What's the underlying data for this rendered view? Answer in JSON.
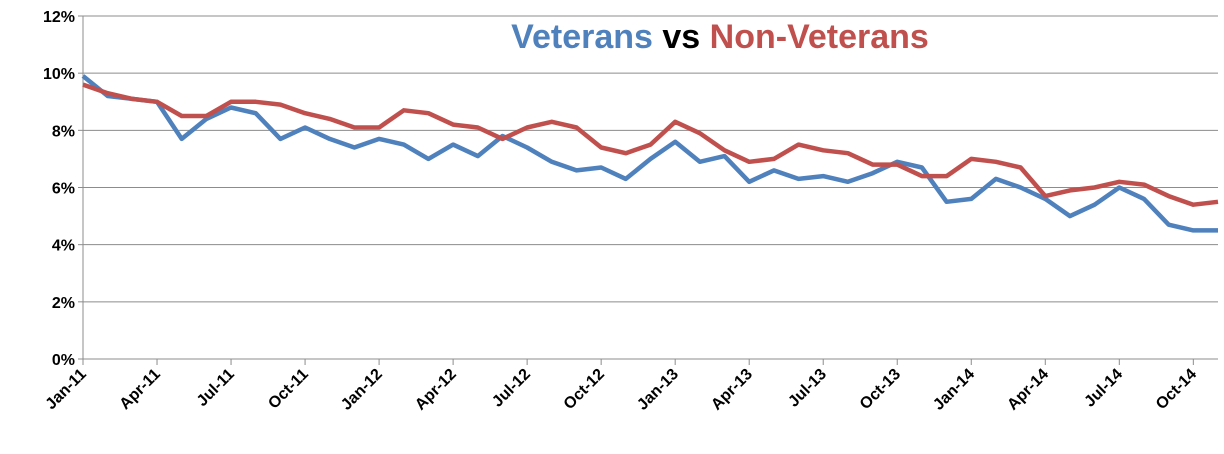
{
  "chart_data": {
    "type": "line",
    "title_vs": "vs",
    "categories": [
      "Jan-11",
      null,
      null,
      "Apr-11",
      null,
      null,
      "Jul-11",
      null,
      null,
      "Oct-11",
      null,
      null,
      "Jan-12",
      null,
      null,
      "Apr-12",
      null,
      null,
      "Jul-12",
      null,
      null,
      "Oct-12",
      null,
      null,
      "Jan-13",
      null,
      null,
      "Apr-13",
      null,
      null,
      "Jul-13",
      null,
      null,
      "Oct-13",
      null,
      null,
      "Jan-14",
      null,
      null,
      "Apr-14",
      null,
      null,
      "Jul-14",
      null,
      null,
      "Oct-14",
      null
    ],
    "series": [
      {
        "name": "Veterans",
        "color": "#4f81bd",
        "values": [
          9.9,
          9.2,
          9.1,
          9.0,
          7.7,
          8.4,
          8.8,
          8.6,
          7.7,
          8.1,
          7.7,
          7.4,
          7.7,
          7.5,
          7.0,
          7.5,
          7.1,
          7.8,
          7.4,
          6.9,
          6.6,
          6.7,
          6.3,
          7.0,
          7.6,
          6.9,
          7.1,
          6.2,
          6.6,
          6.3,
          6.4,
          6.2,
          6.5,
          6.9,
          6.7,
          5.5,
          5.6,
          6.3,
          6.0,
          5.6,
          5.0,
          5.4,
          6.0,
          5.6,
          4.7,
          4.5,
          4.5
        ]
      },
      {
        "name": "Non-Veterans",
        "color": "#c0504d",
        "values": [
          9.6,
          9.3,
          9.1,
          9.0,
          8.5,
          8.5,
          9.0,
          9.0,
          8.9,
          8.6,
          8.4,
          8.1,
          8.1,
          8.7,
          8.6,
          8.2,
          8.1,
          7.7,
          8.1,
          8.3,
          8.1,
          7.4,
          7.2,
          7.5,
          8.3,
          7.9,
          7.3,
          6.9,
          7.0,
          7.5,
          7.3,
          7.2,
          6.8,
          6.8,
          6.4,
          6.4,
          7.0,
          6.9,
          6.7,
          5.7,
          5.9,
          6.0,
          6.2,
          6.1,
          5.7,
          5.4,
          5.5
        ]
      }
    ],
    "ylim": [
      0,
      12
    ],
    "yticks": [
      {
        "value": 0,
        "label": "0%"
      },
      {
        "value": 2,
        "label": "2%"
      },
      {
        "value": 4,
        "label": "4%"
      },
      {
        "value": 6,
        "label": "6%"
      },
      {
        "value": 8,
        "label": "8%"
      },
      {
        "value": 10,
        "label": "10%"
      },
      {
        "value": 12,
        "label": "12%"
      }
    ],
    "grid": true
  }
}
